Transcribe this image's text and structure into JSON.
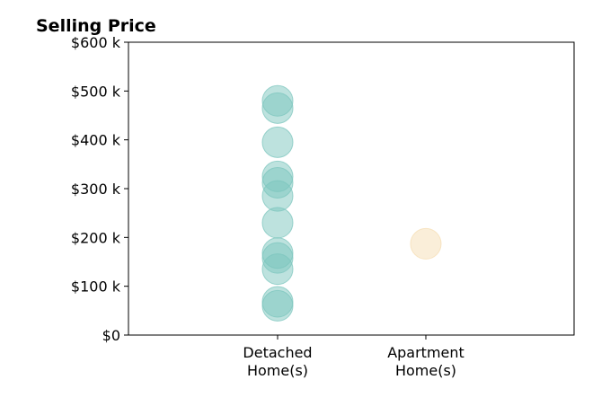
{
  "chart_data": {
    "type": "scatter",
    "title": "Selling Price",
    "xlabel": "",
    "ylabel": "",
    "categories": [
      "Detached\nHome(s)",
      "Apartment\nHome(s)"
    ],
    "y_ticks": [
      "$0",
      "$100 k",
      "$200 k",
      "$300 k",
      "$400 k",
      "$500 k",
      "$600 k"
    ],
    "y_tick_values": [
      0,
      100000,
      200000,
      300000,
      400000,
      500000,
      600000
    ],
    "ylim": [
      0,
      600000
    ],
    "grid": false,
    "series": [
      {
        "category": "Detached\nHome(s)",
        "color": "#7cc5bd",
        "values": [
          480000,
          465000,
          395000,
          325000,
          312000,
          285000,
          230000,
          168000,
          158000,
          135000,
          68000,
          60000
        ]
      },
      {
        "category": "Apartment\nHome(s)",
        "color": "#f5deb3",
        "values": [
          187000
        ]
      }
    ]
  }
}
